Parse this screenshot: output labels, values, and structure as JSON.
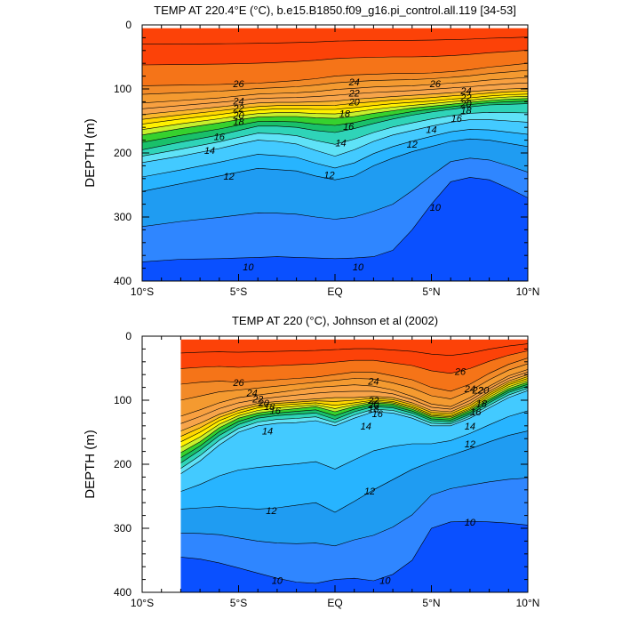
{
  "chart_data": [
    {
      "type": "contour",
      "title": "TEMP AT 220.4°E (°C), b.e15.B1850.f09_g16.pi_control.all.119 [34-53]",
      "ylabel": "DEPTH (m)",
      "xlim": [
        -10,
        10
      ],
      "ylim": [
        0,
        400
      ],
      "y_inverted": true,
      "x_ticks": [
        -10,
        -5,
        0,
        5,
        10
      ],
      "x_tick_labels": [
        "10°S",
        "5°S",
        "EQ",
        "5°N",
        "10°N"
      ],
      "y_ticks": [
        0,
        100,
        200,
        300,
        400
      ],
      "y_tick_labels": [
        "0",
        "100",
        "200",
        "300",
        "400"
      ],
      "data_xlim": [
        -10,
        10
      ],
      "data_ylim": [
        5,
        400
      ],
      "levels": [
        10,
        11,
        12,
        13,
        14,
        15,
        16,
        17,
        18,
        19,
        20,
        21,
        22,
        23,
        24,
        25,
        26,
        27,
        28
      ],
      "x": [
        -10,
        -8,
        -6,
        -5,
        -4,
        -3,
        -2,
        -1,
        0,
        1,
        2,
        3,
        4,
        5,
        6,
        7,
        8,
        9,
        10
      ],
      "isotherm_depths": [
        {
          "level": 10,
          "depths": [
            370,
            366,
            365,
            364,
            363,
            362,
            363,
            364,
            365,
            364,
            362,
            352,
            320,
            280,
            245,
            238,
            242,
            255,
            270
          ]
        },
        {
          "level": 12,
          "depths": [
            260,
            248,
            236,
            230,
            224,
            226,
            228,
            236,
            242,
            236,
            220,
            208,
            198,
            190,
            182,
            178,
            180,
            185,
            190
          ]
        },
        {
          "level": 14,
          "depths": [
            215,
            205,
            193,
            186,
            180,
            182,
            186,
            196,
            205,
            195,
            182,
            172,
            165,
            158,
            152,
            148,
            148,
            150,
            152
          ]
        },
        {
          "level": 16,
          "depths": [
            195,
            183,
            172,
            165,
            158,
            158,
            160,
            165,
            168,
            162,
            154,
            147,
            141,
            136,
            132,
            128,
            125,
            124,
            123
          ]
        },
        {
          "level": 18,
          "depths": [
            172,
            162,
            153,
            148,
            144,
            143,
            143,
            145,
            146,
            143,
            138,
            134,
            130,
            127,
            124,
            121,
            118,
            116,
            115
          ]
        },
        {
          "level": 20,
          "depths": [
            155,
            147,
            140,
            136,
            133,
            131,
            131,
            132,
            132,
            129,
            126,
            123,
            121,
            119,
            116,
            114,
            111,
            109,
            108
          ]
        },
        {
          "level": 22,
          "depths": [
            140,
            134,
            128,
            125,
            122,
            121,
            121,
            120,
            119,
            116,
            114,
            112,
            110,
            108,
            106,
            104,
            102,
            100,
            99
          ]
        },
        {
          "level": 24,
          "depths": [
            122,
            118,
            114,
            111,
            108,
            107,
            106,
            104,
            101,
            99,
            97,
            96,
            95,
            93,
            91,
            89,
            86,
            84,
            82
          ]
        },
        {
          "level": 26,
          "depths": [
            95,
            94,
            93,
            92,
            91,
            89,
            87,
            84,
            80,
            78,
            77,
            76,
            76,
            75,
            73,
            70,
            66,
            63,
            60
          ]
        }
      ],
      "contour_labels": [
        {
          "text": "26",
          "x": -5.0,
          "y": 92
        },
        {
          "text": "24",
          "x": -5.0,
          "y": 119
        },
        {
          "text": "22",
          "x": -5.0,
          "y": 130
        },
        {
          "text": "20",
          "x": -5.0,
          "y": 141
        },
        {
          "text": "18",
          "x": -5.0,
          "y": 151
        },
        {
          "text": "16",
          "x": -6.0,
          "y": 174
        },
        {
          "text": "14",
          "x": -6.5,
          "y": 196
        },
        {
          "text": "12",
          "x": -5.5,
          "y": 236
        },
        {
          "text": "24",
          "x": 1.0,
          "y": 89
        },
        {
          "text": "22",
          "x": 1.0,
          "y": 106
        },
        {
          "text": "20",
          "x": 1.0,
          "y": 120
        },
        {
          "text": "18",
          "x": 0.5,
          "y": 138
        },
        {
          "text": "16",
          "x": 0.7,
          "y": 158
        },
        {
          "text": "14",
          "x": 0.3,
          "y": 184
        },
        {
          "text": "12",
          "x": -0.3,
          "y": 234
        },
        {
          "text": "26",
          "x": 5.2,
          "y": 92
        },
        {
          "text": "24",
          "x": 6.8,
          "y": 103
        },
        {
          "text": "22",
          "x": 6.8,
          "y": 113
        },
        {
          "text": "20",
          "x": 6.8,
          "y": 123
        },
        {
          "text": "18",
          "x": 6.8,
          "y": 133
        },
        {
          "text": "16",
          "x": 6.3,
          "y": 146
        },
        {
          "text": "14",
          "x": 5.0,
          "y": 163
        },
        {
          "text": "12",
          "x": 4.0,
          "y": 186
        },
        {
          "text": "10",
          "x": 5.2,
          "y": 285
        },
        {
          "text": "10",
          "x": -4.5,
          "y": 378
        },
        {
          "text": "10",
          "x": 1.2,
          "y": 378
        }
      ]
    },
    {
      "type": "contour",
      "title": "TEMP AT 220 (°C), Johnson et al (2002)",
      "ylabel": "DEPTH (m)",
      "xlim": [
        -10,
        10
      ],
      "ylim": [
        0,
        400
      ],
      "y_inverted": true,
      "x_ticks": [
        -10,
        -5,
        0,
        5,
        10
      ],
      "x_tick_labels": [
        "10°S",
        "5°S",
        "EQ",
        "5°N",
        "10°N"
      ],
      "y_ticks": [
        0,
        100,
        200,
        300,
        400
      ],
      "y_tick_labels": [
        "0",
        "100",
        "200",
        "300",
        "400"
      ],
      "data_xlim": [
        -8,
        10
      ],
      "data_ylim": [
        5,
        400
      ],
      "levels": [
        10,
        11,
        12,
        13,
        14,
        15,
        16,
        17,
        18,
        19,
        20,
        21,
        22,
        23,
        24,
        25,
        26,
        27,
        28
      ],
      "x": [
        -8,
        -7,
        -6,
        -5,
        -4,
        -3,
        -2,
        -1,
        0,
        1,
        2,
        3,
        4,
        5,
        6,
        7,
        8,
        9,
        10
      ],
      "isotherm_depths": [
        {
          "level": 10,
          "depths": [
            345,
            348,
            354,
            362,
            370,
            378,
            384,
            386,
            380,
            378,
            382,
            372,
            350,
            300,
            290,
            289,
            290,
            292,
            295
          ]
        },
        {
          "level": 12,
          "depths": [
            270,
            268,
            266,
            268,
            270,
            268,
            264,
            260,
            275,
            258,
            240,
            224,
            208,
            196,
            186,
            176,
            165,
            155,
            148
          ]
        },
        {
          "level": 14,
          "depths": [
            215,
            195,
            170,
            150,
            140,
            136,
            135,
            132,
            140,
            128,
            118,
            120,
            128,
            140,
            140,
            128,
            112,
            96,
            85
          ]
        },
        {
          "level": 16,
          "depths": [
            198,
            178,
            155,
            138,
            128,
            124,
            122,
            120,
            130,
            118,
            110,
            112,
            120,
            132,
            134,
            122,
            104,
            88,
            78
          ]
        },
        {
          "level": 18,
          "depths": [
            182,
            165,
            143,
            128,
            120,
            116,
            113,
            110,
            118,
            110,
            104,
            106,
            114,
            126,
            128,
            116,
            98,
            82,
            72
          ]
        },
        {
          "level": 20,
          "depths": [
            165,
            150,
            132,
            120,
            112,
            108,
            106,
            104,
            108,
            104,
            100,
            102,
            110,
            122,
            124,
            112,
            92,
            76,
            66
          ]
        },
        {
          "level": 22,
          "depths": [
            148,
            136,
            122,
            112,
            105,
            102,
            100,
            98,
            96,
            96,
            94,
            96,
            104,
            116,
            118,
            105,
            86,
            70,
            60
          ]
        },
        {
          "level": 24,
          "depths": [
            125,
            115,
            104,
            96,
            92,
            88,
            84,
            80,
            78,
            76,
            78,
            84,
            94,
            106,
            110,
            96,
            78,
            62,
            52
          ]
        },
        {
          "level": 26,
          "depths": [
            75,
            72,
            70,
            72,
            70,
            68,
            66,
            64,
            60,
            56,
            56,
            62,
            68,
            80,
            86,
            75,
            58,
            44,
            34
          ]
        }
      ],
      "contour_labels": [
        {
          "text": "26",
          "x": -5.0,
          "y": 72
        },
        {
          "text": "24",
          "x": -4.3,
          "y": 88
        },
        {
          "text": "22",
          "x": -4.0,
          "y": 98
        },
        {
          "text": "20",
          "x": -3.7,
          "y": 104
        },
        {
          "text": "18",
          "x": -3.4,
          "y": 110
        },
        {
          "text": "16",
          "x": -3.1,
          "y": 116
        },
        {
          "text": "14",
          "x": -3.5,
          "y": 148
        },
        {
          "text": "24",
          "x": 2.0,
          "y": 70
        },
        {
          "text": "22",
          "x": 2.0,
          "y": 100
        },
        {
          "text": "20",
          "x": 2.0,
          "y": 107
        },
        {
          "text": "18",
          "x": 2.0,
          "y": 113
        },
        {
          "text": "16",
          "x": 2.2,
          "y": 121
        },
        {
          "text": "14",
          "x": 1.6,
          "y": 140
        },
        {
          "text": "26",
          "x": 6.5,
          "y": 55
        },
        {
          "text": "24",
          "x": 7.0,
          "y": 82
        },
        {
          "text": "22",
          "x": 7.4,
          "y": 84
        },
        {
          "text": "20",
          "x": 7.7,
          "y": 84
        },
        {
          "text": "18",
          "x": 7.6,
          "y": 105
        },
        {
          "text": "16",
          "x": 7.3,
          "y": 118
        },
        {
          "text": "14",
          "x": 7.0,
          "y": 140
        },
        {
          "text": "12",
          "x": 7.0,
          "y": 168
        },
        {
          "text": "12",
          "x": 1.8,
          "y": 242
        },
        {
          "text": "12",
          "x": -3.3,
          "y": 272
        },
        {
          "text": "10",
          "x": 7.0,
          "y": 290
        },
        {
          "text": "10",
          "x": -3.0,
          "y": 381
        },
        {
          "text": "10",
          "x": 2.6,
          "y": 381
        }
      ]
    }
  ],
  "colors": {
    "bands": [
      "#0a50ff",
      "#2f86ff",
      "#1f9cf2",
      "#27b4ff",
      "#43caff",
      "#5fe2f7",
      "#2fd4b8",
      "#19c06a",
      "#36d12e",
      "#c6f02c",
      "#fff000",
      "#ffd700",
      "#fbb82a",
      "#f7a44a",
      "#f8a040",
      "#f49a30",
      "#f28a28",
      "#f57418",
      "#fc4208"
    ],
    "line": "#000000",
    "background": "#ffffff"
  }
}
